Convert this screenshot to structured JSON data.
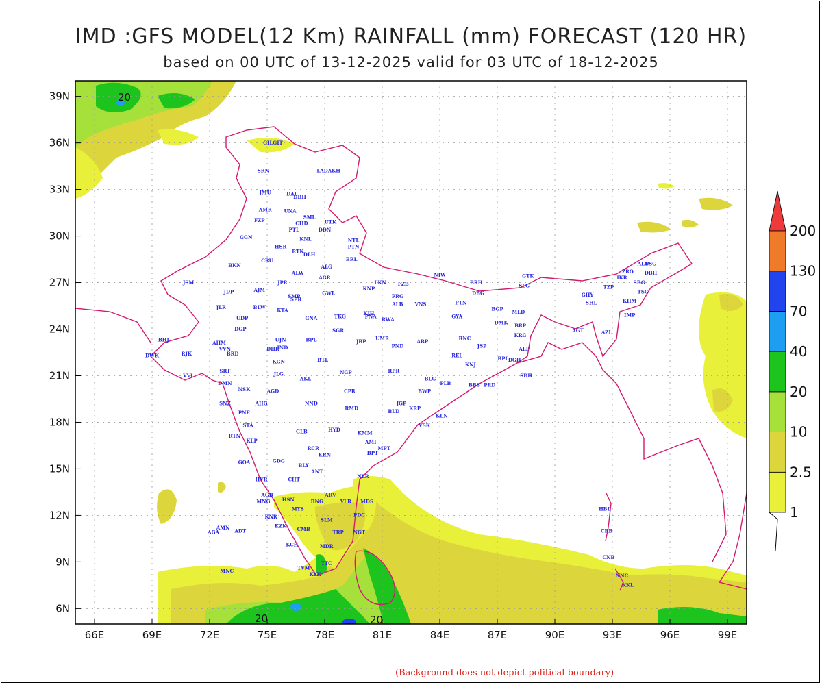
{
  "title": "IMD :GFS MODEL(12 Km) RAINFALL (mm) FORECAST (120 HR)",
  "subtitle": "based on 00 UTC of 13-12-2025 valid for 03 UTC of 18-12-2025",
  "footnote": "(Background does not depict political boundary)",
  "x_ticks": [
    "66E",
    "69E",
    "72E",
    "75E",
    "78E",
    "81E",
    "84E",
    "87E",
    "90E",
    "93E",
    "96E",
    "99E"
  ],
  "y_ticks": [
    "39N",
    "36N",
    "33N",
    "30N",
    "27N",
    "24N",
    "21N",
    "18N",
    "15N",
    "12N",
    "9N",
    "6N"
  ],
  "x_values": [
    66,
    69,
    72,
    75,
    78,
    81,
    84,
    87,
    90,
    93,
    96,
    99
  ],
  "y_values": [
    39,
    36,
    33,
    30,
    27,
    24,
    21,
    18,
    15,
    12,
    9,
    6
  ],
  "lon_range": [
    65,
    100
  ],
  "lat_range": [
    5,
    40
  ],
  "contour_labels": [
    "20",
    "20",
    "20"
  ],
  "colorbar": {
    "levels": [
      "1",
      "2.5",
      "10",
      "20",
      "40",
      "70",
      "130",
      "200"
    ],
    "colors": [
      "#e8f03a",
      "#dcd63c",
      "#a6e03a",
      "#1ec41e",
      "#1e9ef0",
      "#2244ee",
      "#ee7a2a",
      "#ee3a3a"
    ]
  },
  "stations": [
    {
      "code": "GILGIT",
      "lon": 75.3,
      "lat": 35.9
    },
    {
      "code": "LADAKH",
      "lon": 78.2,
      "lat": 34.1
    },
    {
      "code": "SRN",
      "lon": 74.8,
      "lat": 34.1
    },
    {
      "code": "JMU",
      "lon": 74.9,
      "lat": 32.7
    },
    {
      "code": "DAL",
      "lon": 76.3,
      "lat": 32.6
    },
    {
      "code": "DBH",
      "lon": 76.7,
      "lat": 32.4
    },
    {
      "code": "AMR",
      "lon": 74.9,
      "lat": 31.6
    },
    {
      "code": "UNA",
      "lon": 76.2,
      "lat": 31.5
    },
    {
      "code": "FZP",
      "lon": 74.6,
      "lat": 30.9
    },
    {
      "code": "SML",
      "lon": 77.2,
      "lat": 31.1
    },
    {
      "code": "CHD",
      "lon": 76.8,
      "lat": 30.7
    },
    {
      "code": "UTK",
      "lon": 78.3,
      "lat": 30.8
    },
    {
      "code": "PTL",
      "lon": 76.4,
      "lat": 30.3
    },
    {
      "code": "DDN",
      "lon": 78.0,
      "lat": 30.3
    },
    {
      "code": "GGN",
      "lon": 73.9,
      "lat": 29.8
    },
    {
      "code": "KNL",
      "lon": 77.0,
      "lat": 29.7
    },
    {
      "code": "NTL",
      "lon": 79.5,
      "lat": 29.6
    },
    {
      "code": "HSR",
      "lon": 75.7,
      "lat": 29.2
    },
    {
      "code": "PTN",
      "lon": 79.5,
      "lat": 29.2
    },
    {
      "code": "RTK",
      "lon": 76.6,
      "lat": 28.9
    },
    {
      "code": "DLH",
      "lon": 77.2,
      "lat": 28.7
    },
    {
      "code": "BKN",
      "lon": 73.3,
      "lat": 28.0
    },
    {
      "code": "CRU",
      "lon": 75.0,
      "lat": 28.3
    },
    {
      "code": "BRL",
      "lon": 79.4,
      "lat": 28.4
    },
    {
      "code": "ALG",
      "lon": 78.1,
      "lat": 27.9
    },
    {
      "code": "ALW",
      "lon": 76.6,
      "lat": 27.5
    },
    {
      "code": "AGR",
      "lon": 78.0,
      "lat": 27.2
    },
    {
      "code": "NJW",
      "lon": 84.0,
      "lat": 27.4
    },
    {
      "code": "JSM",
      "lon": 70.9,
      "lat": 26.9
    },
    {
      "code": "JPR",
      "lon": 75.8,
      "lat": 26.9
    },
    {
      "code": "LKN",
      "lon": 80.9,
      "lat": 26.9
    },
    {
      "code": "FZB",
      "lon": 82.1,
      "lat": 26.8
    },
    {
      "code": "BRH",
      "lon": 85.9,
      "lat": 26.9
    },
    {
      "code": "GTK",
      "lon": 88.6,
      "lat": 27.3
    },
    {
      "code": "ALG",
      "lon": 94.6,
      "lat": 28.1
    },
    {
      "code": "PSG",
      "lon": 95.0,
      "lat": 28.1
    },
    {
      "code": "ZRO",
      "lon": 93.8,
      "lat": 27.6
    },
    {
      "code": "DBH",
      "lon": 95.0,
      "lat": 27.5
    },
    {
      "code": "IKR",
      "lon": 93.5,
      "lat": 27.2
    },
    {
      "code": "SBG",
      "lon": 94.4,
      "lat": 26.9
    },
    {
      "code": "JDP",
      "lon": 73.0,
      "lat": 26.3
    },
    {
      "code": "AJM",
      "lon": 74.6,
      "lat": 26.4
    },
    {
      "code": "KNP",
      "lon": 80.3,
      "lat": 26.5
    },
    {
      "code": "GWL",
      "lon": 78.2,
      "lat": 26.2
    },
    {
      "code": "PRG",
      "lon": 81.8,
      "lat": 26.0
    },
    {
      "code": "DBG",
      "lon": 86.0,
      "lat": 26.2
    },
    {
      "code": "SLG",
      "lon": 88.4,
      "lat": 26.7
    },
    {
      "code": "TZP",
      "lon": 92.8,
      "lat": 26.6
    },
    {
      "code": "TSG",
      "lon": 94.6,
      "lat": 26.3
    },
    {
      "code": "SMP",
      "lon": 76.4,
      "lat": 26.0
    },
    {
      "code": "SPR",
      "lon": 76.5,
      "lat": 25.8
    },
    {
      "code": "ALB",
      "lon": 81.8,
      "lat": 25.5
    },
    {
      "code": "VNS",
      "lon": 83.0,
      "lat": 25.5
    },
    {
      "code": "PTN",
      "lon": 85.1,
      "lat": 25.6
    },
    {
      "code": "GHY",
      "lon": 91.7,
      "lat": 26.1
    },
    {
      "code": "KHM",
      "lon": 93.9,
      "lat": 25.7
    },
    {
      "code": "SHL",
      "lon": 91.9,
      "lat": 25.6
    },
    {
      "code": "JLR",
      "lon": 72.6,
      "lat": 25.3
    },
    {
      "code": "BLW",
      "lon": 74.6,
      "lat": 25.3
    },
    {
      "code": "KTA",
      "lon": 75.8,
      "lat": 25.1
    },
    {
      "code": "BGP",
      "lon": 87.0,
      "lat": 25.2
    },
    {
      "code": "MLD",
      "lon": 88.1,
      "lat": 25.0
    },
    {
      "code": "KJH",
      "lon": 80.3,
      "lat": 24.9
    },
    {
      "code": "TKG",
      "lon": 78.8,
      "lat": 24.7
    },
    {
      "code": "PNA",
      "lon": 80.4,
      "lat": 24.7
    },
    {
      "code": "GYA",
      "lon": 84.9,
      "lat": 24.7
    },
    {
      "code": "RWA",
      "lon": 81.3,
      "lat": 24.5
    },
    {
      "code": "UDP",
      "lon": 73.7,
      "lat": 24.6
    },
    {
      "code": "GNA",
      "lon": 77.3,
      "lat": 24.6
    },
    {
      "code": "IMP",
      "lon": 93.9,
      "lat": 24.8
    },
    {
      "code": "DMK",
      "lon": 87.2,
      "lat": 24.3
    },
    {
      "code": "BRP",
      "lon": 88.2,
      "lat": 24.1
    },
    {
      "code": "DGP",
      "lon": 73.6,
      "lat": 23.9
    },
    {
      "code": "SGR",
      "lon": 78.7,
      "lat": 23.8
    },
    {
      "code": "AGT",
      "lon": 91.2,
      "lat": 23.8
    },
    {
      "code": "AZL",
      "lon": 92.7,
      "lat": 23.7
    },
    {
      "code": "KRG",
      "lon": 88.2,
      "lat": 23.5
    },
    {
      "code": "BHJ",
      "lon": 69.6,
      "lat": 23.2
    },
    {
      "code": "UJN",
      "lon": 75.7,
      "lat": 23.2
    },
    {
      "code": "BPL",
      "lon": 77.3,
      "lat": 23.2
    },
    {
      "code": "JBP",
      "lon": 79.9,
      "lat": 23.1
    },
    {
      "code": "AHM",
      "lon": 72.5,
      "lat": 23.0
    },
    {
      "code": "UMR",
      "lon": 81.0,
      "lat": 23.3
    },
    {
      "code": "ABP",
      "lon": 83.1,
      "lat": 23.1
    },
    {
      "code": "RNC",
      "lon": 85.3,
      "lat": 23.3
    },
    {
      "code": "IND",
      "lon": 75.8,
      "lat": 22.7
    },
    {
      "code": "JSP",
      "lon": 86.2,
      "lat": 22.8
    },
    {
      "code": "VVN",
      "lon": 72.8,
      "lat": 22.6
    },
    {
      "code": "PND",
      "lon": 81.8,
      "lat": 22.8
    },
    {
      "code": "DHR",
      "lon": 75.3,
      "lat": 22.6
    },
    {
      "code": "ALP",
      "lon": 88.4,
      "lat": 22.6
    },
    {
      "code": "DWK",
      "lon": 69.0,
      "lat": 22.2
    },
    {
      "code": "RJK",
      "lon": 70.8,
      "lat": 22.3
    },
    {
      "code": "BRD",
      "lon": 73.2,
      "lat": 22.3
    },
    {
      "code": "REL",
      "lon": 84.9,
      "lat": 22.2
    },
    {
      "code": "BPL",
      "lon": 87.3,
      "lat": 22.0
    },
    {
      "code": "DGH",
      "lon": 87.9,
      "lat": 21.9
    },
    {
      "code": "KGN",
      "lon": 75.6,
      "lat": 21.8
    },
    {
      "code": "BTL",
      "lon": 77.9,
      "lat": 21.9
    },
    {
      "code": "KNJ",
      "lon": 85.6,
      "lat": 21.6
    },
    {
      "code": "SRT",
      "lon": 72.8,
      "lat": 21.2
    },
    {
      "code": "NGP",
      "lon": 79.1,
      "lat": 21.1
    },
    {
      "code": "RPR",
      "lon": 81.6,
      "lat": 21.2
    },
    {
      "code": "JLG",
      "lon": 75.6,
      "lat": 21.0
    },
    {
      "code": "SDH",
      "lon": 88.5,
      "lat": 20.9
    },
    {
      "code": "AKL",
      "lon": 77.0,
      "lat": 20.7
    },
    {
      "code": "BLG",
      "lon": 83.5,
      "lat": 20.7
    },
    {
      "code": "VVL",
      "lon": 70.9,
      "lat": 20.9
    },
    {
      "code": "PLB",
      "lon": 84.3,
      "lat": 20.4
    },
    {
      "code": "DMN",
      "lon": 72.8,
      "lat": 20.4
    },
    {
      "code": "BBS",
      "lon": 85.8,
      "lat": 20.3
    },
    {
      "code": "PRD",
      "lon": 86.6,
      "lat": 20.3
    },
    {
      "code": "NSK",
      "lon": 73.8,
      "lat": 20.0
    },
    {
      "code": "AGD",
      "lon": 75.3,
      "lat": 19.9
    },
    {
      "code": "CPR",
      "lon": 79.3,
      "lat": 19.9
    },
    {
      "code": "BWP",
      "lon": 83.2,
      "lat": 19.9
    },
    {
      "code": "SNZ",
      "lon": 72.8,
      "lat": 19.1
    },
    {
      "code": "AHG",
      "lon": 74.7,
      "lat": 19.1
    },
    {
      "code": "NND",
      "lon": 77.3,
      "lat": 19.1
    },
    {
      "code": "JGP",
      "lon": 82.0,
      "lat": 19.1
    },
    {
      "code": "KRP",
      "lon": 82.7,
      "lat": 18.8
    },
    {
      "code": "RMD",
      "lon": 79.4,
      "lat": 18.8
    },
    {
      "code": "BLD",
      "lon": 81.6,
      "lat": 18.6
    },
    {
      "code": "PNE",
      "lon": 73.8,
      "lat": 18.5
    },
    {
      "code": "KLN",
      "lon": 84.1,
      "lat": 18.3
    },
    {
      "code": "VSK",
      "lon": 83.2,
      "lat": 17.7
    },
    {
      "code": "RTN",
      "lon": 73.3,
      "lat": 17.0
    },
    {
      "code": "STA",
      "lon": 74.0,
      "lat": 17.7
    },
    {
      "code": "GLB",
      "lon": 76.8,
      "lat": 17.3
    },
    {
      "code": "HYD",
      "lon": 78.5,
      "lat": 17.4
    },
    {
      "code": "KMM",
      "lon": 80.1,
      "lat": 17.2
    },
    {
      "code": "AMI",
      "lon": 80.4,
      "lat": 16.6
    },
    {
      "code": "KLP",
      "lon": 74.2,
      "lat": 16.7
    },
    {
      "code": "MPT",
      "lon": 81.1,
      "lat": 16.2
    },
    {
      "code": "BPT",
      "lon": 80.5,
      "lat": 15.9
    },
    {
      "code": "RCR",
      "lon": 77.4,
      "lat": 16.2
    },
    {
      "code": "KRN",
      "lon": 78.0,
      "lat": 15.8
    },
    {
      "code": "GDG",
      "lon": 75.6,
      "lat": 15.4
    },
    {
      "code": "GOA",
      "lon": 73.8,
      "lat": 15.3
    },
    {
      "code": "BLY",
      "lon": 76.9,
      "lat": 15.1
    },
    {
      "code": "ANT",
      "lon": 77.6,
      "lat": 14.7
    },
    {
      "code": "NLR",
      "lon": 80.0,
      "lat": 14.4
    },
    {
      "code": "HVR",
      "lon": 74.7,
      "lat": 14.2
    },
    {
      "code": "CHT",
      "lon": 76.4,
      "lat": 14.2
    },
    {
      "code": "ARV",
      "lon": 78.3,
      "lat": 13.2
    },
    {
      "code": "AGB",
      "lon": 75.0,
      "lat": 13.2
    },
    {
      "code": "HSN",
      "lon": 76.1,
      "lat": 12.9
    },
    {
      "code": "BNG",
      "lon": 77.6,
      "lat": 12.8
    },
    {
      "code": "VLR",
      "lon": 79.1,
      "lat": 12.8
    },
    {
      "code": "MDS",
      "lon": 80.2,
      "lat": 12.8
    },
    {
      "code": "MNG",
      "lon": 74.8,
      "lat": 12.8
    },
    {
      "code": "MYS",
      "lon": 76.6,
      "lat": 12.3
    },
    {
      "code": "KNR",
      "lon": 75.2,
      "lat": 11.8
    },
    {
      "code": "SLM",
      "lon": 78.1,
      "lat": 11.6
    },
    {
      "code": "PDC",
      "lon": 79.8,
      "lat": 11.9
    },
    {
      "code": "KZK",
      "lon": 75.7,
      "lat": 11.2
    },
    {
      "code": "AMN",
      "lon": 72.7,
      "lat": 11.1
    },
    {
      "code": "CMB",
      "lon": 76.9,
      "lat": 11.0
    },
    {
      "code": "HBL",
      "lon": 92.6,
      "lat": 12.3
    },
    {
      "code": "AGA",
      "lon": 72.2,
      "lat": 10.8
    },
    {
      "code": "ADT",
      "lon": 73.6,
      "lat": 10.9
    },
    {
      "code": "TRP",
      "lon": 78.7,
      "lat": 10.8
    },
    {
      "code": "NGT",
      "lon": 79.8,
      "lat": 10.8
    },
    {
      "code": "CRB",
      "lon": 92.7,
      "lat": 10.9
    },
    {
      "code": "KCH",
      "lon": 76.3,
      "lat": 10.0
    },
    {
      "code": "MDR",
      "lon": 78.1,
      "lat": 9.9
    },
    {
      "code": "CNB",
      "lon": 92.8,
      "lat": 9.2
    },
    {
      "code": "MNC",
      "lon": 72.9,
      "lat": 8.3
    },
    {
      "code": "TVM",
      "lon": 76.9,
      "lat": 8.5
    },
    {
      "code": "TTC",
      "lon": 78.1,
      "lat": 8.8
    },
    {
      "code": "NNC",
      "lon": 93.5,
      "lat": 8.0
    },
    {
      "code": "KYK",
      "lon": 77.5,
      "lat": 8.1
    },
    {
      "code": "KKL",
      "lon": 93.8,
      "lat": 7.4
    }
  ]
}
